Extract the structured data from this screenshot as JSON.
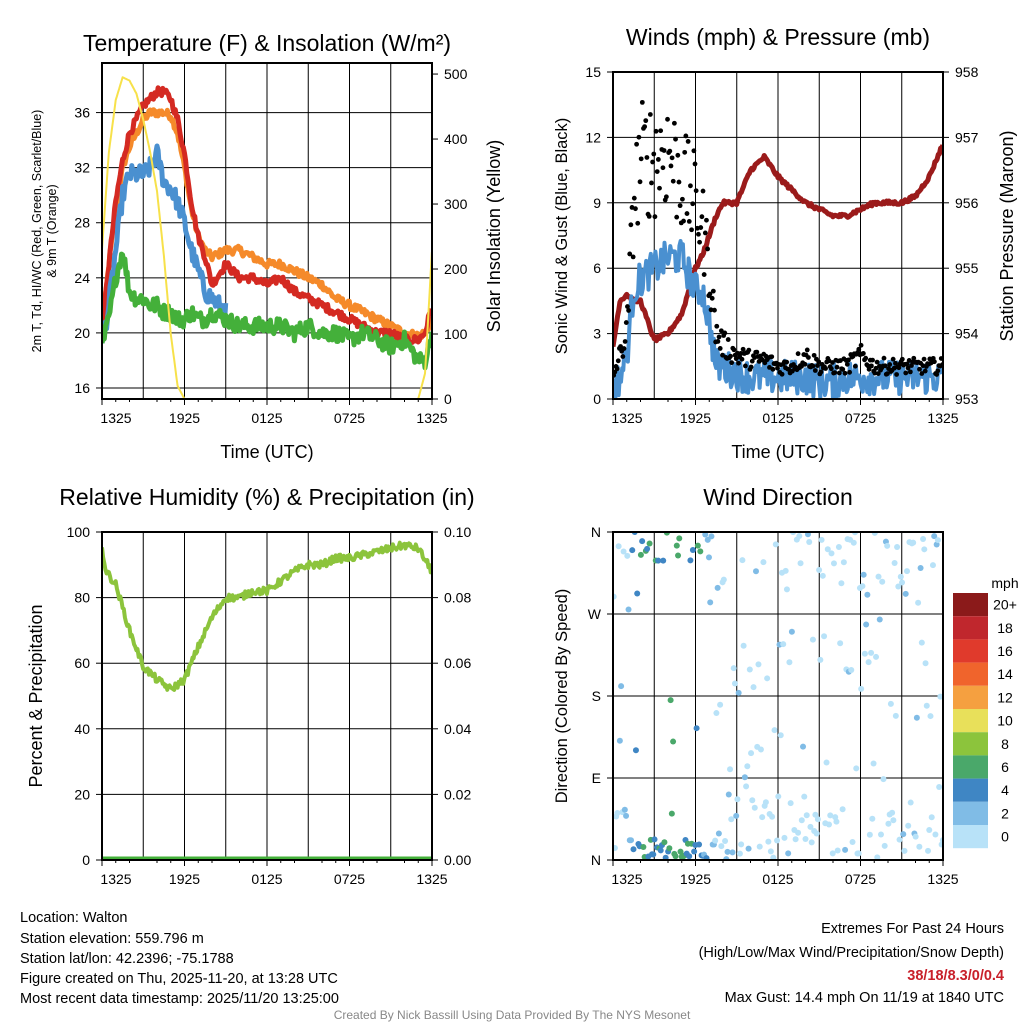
{
  "chart_data": [
    {
      "type": "line",
      "title": "Temperature (F) & Insolation (W/m²)",
      "xlabel": "Time (UTC)",
      "ylabel_line1": "2m T, Td, HI/WC (Red, Green, Scarlet/Blue)",
      "ylabel_line2": "& 9m T (Orange)",
      "y2label": "Solar Insolation (Yellow)",
      "x_ticks": [
        "1325",
        "1925",
        "0125",
        "0725",
        "1325"
      ],
      "y_ticks": [
        16,
        20,
        24,
        28,
        32,
        36
      ],
      "y2_ticks": [
        0,
        100,
        200,
        300,
        400,
        500
      ],
      "ylim": [
        15.2,
        39.6
      ],
      "y2lim": [
        0,
        517
      ],
      "x_hours": [
        0,
        0.5,
        1,
        1.5,
        2,
        2.5,
        3,
        3.5,
        4,
        4.5,
        5,
        5.5,
        6,
        6.5,
        7,
        7.5,
        8,
        9,
        10,
        11,
        12,
        13,
        14,
        15,
        16,
        17,
        18,
        19,
        20,
        21,
        22,
        23,
        23.5,
        24
      ],
      "series": [
        {
          "name": "9m T",
          "color": "#f58a2a",
          "values": [
            20,
            25,
            29,
            32,
            33.5,
            34.5,
            35.5,
            36,
            36,
            36,
            35.8,
            34.5,
            32,
            29,
            27,
            26,
            25.5,
            26,
            26,
            25.5,
            25,
            25,
            24.5,
            24,
            23.5,
            22.5,
            22,
            21.5,
            21,
            20.5,
            20,
            19.8,
            20,
            21
          ]
        },
        {
          "name": "2m T",
          "color": "#d42a22",
          "values": [
            20,
            25,
            29.5,
            32.5,
            34.5,
            35.5,
            36.5,
            37,
            37.5,
            37.5,
            37,
            35.5,
            33,
            29.5,
            27,
            25.5,
            23.5,
            25,
            24,
            24,
            23.5,
            24,
            23,
            22.5,
            22,
            21.5,
            21,
            20.5,
            20,
            20,
            19.5,
            19.5,
            20,
            22
          ]
        },
        {
          "name": "HI/WC",
          "color": "#4a90d0",
          "values": [
            19,
            22,
            26,
            30,
            31.5,
            31.5,
            31.5,
            32,
            33,
            31,
            30.5,
            29.5,
            28,
            26,
            24.5,
            23,
            22.5,
            21.5,
            null,
            null,
            null,
            null,
            null,
            null,
            null,
            null,
            null,
            null,
            null,
            null,
            null,
            null,
            null,
            null
          ]
        },
        {
          "name": "Td",
          "color": "#44b03a",
          "values": [
            19,
            21,
            24,
            26,
            23,
            22.5,
            22.5,
            22,
            22,
            21.5,
            21.5,
            21,
            21,
            21.5,
            21,
            21,
            21.5,
            21,
            20.5,
            20.5,
            20.5,
            20.5,
            20,
            20.5,
            20,
            20,
            19.5,
            20,
            19.5,
            19,
            19.5,
            18,
            18,
            20
          ]
        },
        {
          "name": "Solar Insolation",
          "color": "#f7e14a",
          "axis": "right",
          "values": [
            230,
            380,
            460,
            495,
            490,
            470,
            430,
            380,
            320,
            220,
            100,
            20,
            0,
            0,
            0,
            0,
            0,
            0,
            0,
            0,
            0,
            0,
            0,
            0,
            0,
            0,
            0,
            0,
            0,
            0,
            0,
            0,
            40,
            230
          ]
        }
      ]
    },
    {
      "type": "line",
      "title": "Winds (mph) & Pressure (mb)",
      "xlabel": "Time (UTC)",
      "ylabel": "Sonic Wind & Gust (Blue, Black)",
      "y2label": "Station Pressure (Maroon)",
      "x_ticks": [
        "1325",
        "1925",
        "0125",
        "0725",
        "1325"
      ],
      "y_ticks": [
        0,
        3,
        6,
        9,
        12,
        15
      ],
      "y2_ticks": [
        953,
        954,
        955,
        956,
        957,
        958
      ],
      "ylim": [
        0,
        15
      ],
      "y2lim": [
        953,
        958
      ],
      "x_hours": [
        0,
        0.5,
        1,
        1.5,
        2,
        3,
        4,
        5,
        6,
        6.5,
        7,
        7.5,
        8,
        9,
        10,
        11,
        12,
        13,
        14,
        15,
        16,
        17,
        18,
        19,
        20,
        21,
        22,
        23,
        24
      ],
      "series": [
        {
          "name": "Sonic Wind",
          "color": "#4a90d0",
          "values": [
            0.5,
            1,
            2,
            5,
            5.5,
            6,
            6.5,
            6.5,
            5,
            5,
            3.5,
            1.5,
            1.5,
            1.2,
            1,
            1,
            1,
            1,
            1,
            0.8,
            0.8,
            1,
            1,
            1,
            1,
            1,
            1,
            1,
            1
          ]
        },
        {
          "name": "Gust",
          "color": "#000000",
          "type": "scatter",
          "values": [
            1,
            2,
            3,
            9,
            11,
            11,
            11.5,
            10,
            9,
            8,
            6,
            3,
            2.5,
            2,
            1.8,
            1.8,
            1.5,
            1.5,
            2,
            1.5,
            1.5,
            1.5,
            2,
            1.5,
            1.5,
            1.5,
            1.5,
            1.5,
            1.5
          ]
        },
        {
          "name": "Station Pressure",
          "color": "#9b1b1b",
          "axis": "right",
          "values": [
            953.8,
            954.5,
            954.6,
            954.5,
            954.5,
            953.9,
            954.0,
            954.3,
            955.0,
            955.2,
            955.5,
            955.8,
            956.0,
            956.0,
            956.5,
            956.7,
            956.4,
            956.2,
            956.0,
            955.9,
            955.8,
            955.8,
            955.9,
            956.0,
            956.0,
            956.0,
            956.1,
            956.4,
            956.9
          ]
        }
      ]
    },
    {
      "type": "line",
      "title": "Relative Humidity (%) & Precipitation (in)",
      "ylabel": "Percent & Precipitation",
      "x_ticks": [
        "1325",
        "1925",
        "0125",
        "0725",
        "1325"
      ],
      "y_ticks": [
        0,
        20,
        40,
        60,
        80,
        100
      ],
      "y2_ticks": [
        "0.00",
        "0.02",
        "0.04",
        "0.06",
        "0.08",
        "0.10"
      ],
      "ylim": [
        0,
        100
      ],
      "y2lim": [
        0,
        0.1
      ],
      "x_hours": [
        0,
        0.3,
        1,
        2,
        3,
        4,
        5,
        6,
        7,
        8,
        9,
        10,
        11,
        12,
        13,
        14,
        15,
        16,
        17,
        18,
        19,
        20,
        21,
        22,
        23,
        24
      ],
      "series": [
        {
          "name": "Relative Humidity",
          "color": "#8cc43c",
          "values": [
            95,
            88,
            84,
            70,
            59,
            55,
            52,
            55,
            65,
            74,
            80,
            80,
            82,
            82,
            85,
            88,
            90,
            90,
            92,
            92,
            93,
            94,
            95,
            96,
            95,
            88
          ]
        },
        {
          "name": "Precipitation",
          "color": "#44b03a",
          "values": [
            0,
            0,
            0,
            0,
            0,
            0,
            0,
            0,
            0,
            0,
            0,
            0,
            0,
            0,
            0,
            0,
            0,
            0,
            0,
            0,
            0,
            0,
            0,
            0,
            0,
            0
          ]
        }
      ]
    },
    {
      "type": "scatter",
      "title": "Wind Direction",
      "ylabel": "Direction (Colored By Speed)",
      "x_ticks": [
        "1325",
        "1925",
        "0125",
        "0725",
        "1325"
      ],
      "y_ticks": [
        "N",
        "E",
        "S",
        "W",
        "N"
      ],
      "legend_title": "mph",
      "legend_labels": [
        "20+",
        "18",
        "16",
        "14",
        "12",
        "10",
        "8",
        "6",
        "4",
        "2",
        "0"
      ],
      "legend_colors": [
        "#8b1a1a",
        "#c0272d",
        "#e03a2c",
        "#f0642c",
        "#f5a040",
        "#e8e05a",
        "#8cc43c",
        "#4aa86a",
        "#3f86c4",
        "#80bce6",
        "#b8e2f8"
      ]
    }
  ],
  "footer": {
    "location": "Location: Walton",
    "elevation": "Station elevation: 559.796 m",
    "latlon": "Station lat/lon: 42.2396; -75.1788",
    "created": "Figure created on Thu, 2025-11-20, at 13:28 UTC",
    "recent": "Most recent data timestamp: 2025/11/20 13:25:00",
    "extremes_title": "Extremes For Past 24 Hours",
    "extremes_sub": "(High/Low/Max Wind/Precipitation/Snow Depth)",
    "extremes_values": "38/18/8.3/0/0.4",
    "max_gust": "Max Gust: 14.4 mph On 11/19 at 1840 UTC",
    "credit": "Created By Nick Bassill Using Data Provided By The NYS Mesonet"
  }
}
